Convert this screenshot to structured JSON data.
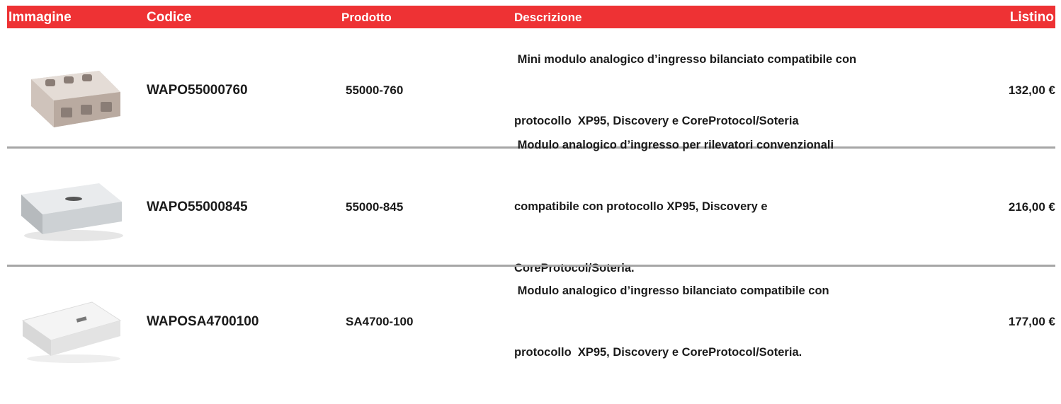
{
  "table": {
    "headers": [
      "Immagine",
      "Codice",
      "Prodotto",
      "Descrizione",
      "Listino"
    ],
    "rows": [
      {
        "code": "WAPO55000760",
        "product": "55000-760",
        "description": [
          " Mini modulo analogico d’ingresso bilanciato compatibile con",
          "protocollo  XP95, Discovery e CoreProtocol/Soteria"
        ],
        "price": "132,00 €"
      },
      {
        "code": "WAPO55000845",
        "product": "55000-845",
        "description": [
          " Modulo analogico d’ingresso per rilevatori convenzionali",
          "compatibile con protocollo XP95, Discovery e",
          "CoreProtocol/Soteria."
        ],
        "price": "216,00 €"
      },
      {
        "code": "WAPOSA4700100",
        "product": "SA4700-100",
        "description": [
          " Modulo analogico d’ingresso bilanciato compatibile con",
          "protocollo  XP95, Discovery e CoreProtocol/Soteria."
        ],
        "price": "177,00 €"
      }
    ]
  }
}
